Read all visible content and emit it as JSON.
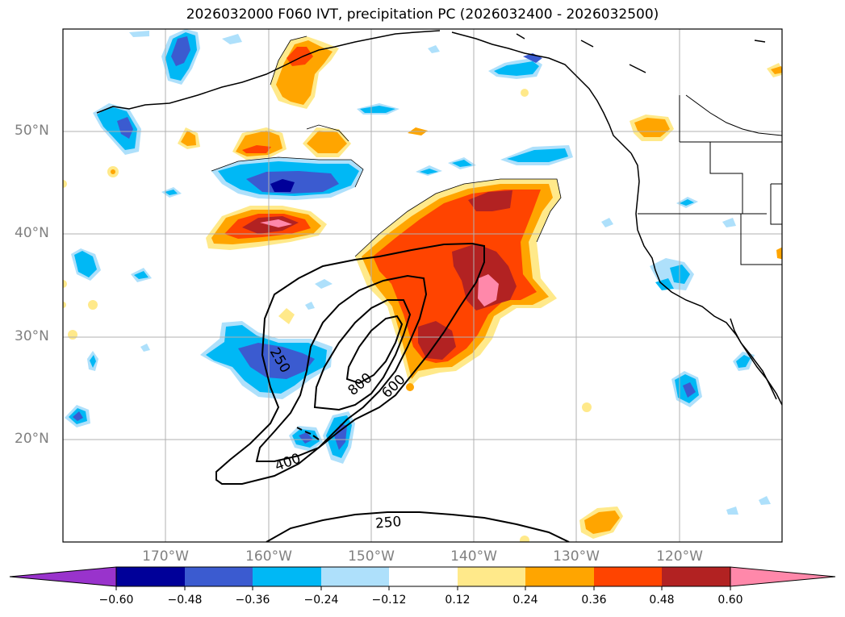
{
  "title": "2026032000 F060 IVT, precipitation PC (2026032400 - 2026032500)",
  "colors": {
    "neg_extreme": "#9933cc",
    "neg_060": "#000099",
    "neg_048": "#3b5bd0",
    "neg_036": "#00b8f5",
    "neg_024": "#aee0fb",
    "neutral": "#ffffff",
    "pos_012": "#ffe98a",
    "pos_024": "#ffa500",
    "pos_036": "#ff4400",
    "pos_048": "#b22222",
    "pos_060": "#ff88aa",
    "grid": "#b0b0b0",
    "coast": "#000000"
  },
  "lat_labels": [
    "50°N",
    "40°N",
    "30°N",
    "20°N"
  ],
  "lon_labels": [
    "170°W",
    "160°W",
    "150°W",
    "140°W",
    "130°W",
    "120°W"
  ],
  "colorbar": {
    "ticks": [
      "−0.60",
      "−0.48",
      "−0.36",
      "−0.24",
      "−0.12",
      "0.12",
      "0.24",
      "0.36",
      "0.48",
      "0.60"
    ],
    "levels": [
      -0.6,
      -0.48,
      -0.36,
      -0.24,
      -0.12,
      0.12,
      0.24,
      0.36,
      0.48,
      0.6
    ]
  },
  "ivt_contours": {
    "labels": [
      "250",
      "400",
      "600",
      "800",
      "250"
    ],
    "levels": [
      250,
      400,
      600,
      800
    ]
  }
}
